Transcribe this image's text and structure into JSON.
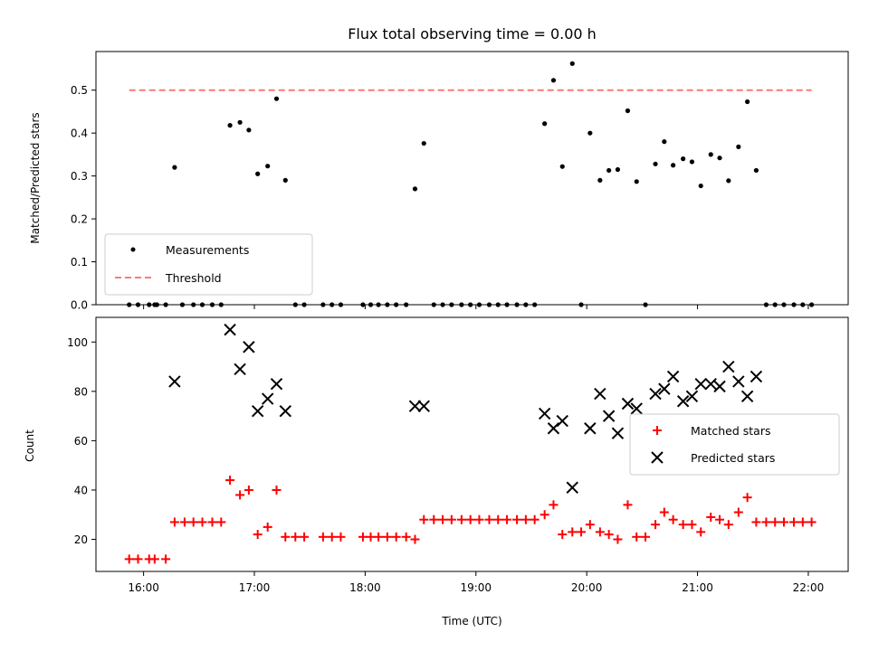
{
  "chart_data": [
    {
      "type": "scatter",
      "title": "Flux total observing time = 0.00 h",
      "xlabel": "",
      "ylabel": "Matched/Predicted stars",
      "xlim": [
        15.57,
        22.36
      ],
      "ylim": [
        0.0,
        0.59
      ],
      "yticks": [
        0.0,
        0.1,
        0.2,
        0.3,
        0.4,
        0.5
      ],
      "ytick_labels": [
        "0.0",
        "0.1",
        "0.2",
        "0.3",
        "0.4",
        "0.5"
      ],
      "grid": false,
      "legend": "lower-left",
      "series": [
        {
          "name": "Measurements",
          "marker": "dot",
          "color": "#000000",
          "points": [
            [
              15.87,
              0.0
            ],
            [
              15.95,
              0.0
            ],
            [
              16.05,
              0.0
            ],
            [
              16.1,
              0.0
            ],
            [
              16.12,
              0.0
            ],
            [
              16.2,
              0.0
            ],
            [
              16.28,
              0.32
            ],
            [
              16.35,
              0.0
            ],
            [
              16.45,
              0.0
            ],
            [
              16.53,
              0.0
            ],
            [
              16.62,
              0.0
            ],
            [
              16.7,
              0.0
            ],
            [
              16.78,
              0.418
            ],
            [
              16.87,
              0.425
            ],
            [
              16.95,
              0.407
            ],
            [
              17.03,
              0.305
            ],
            [
              17.12,
              0.323
            ],
            [
              17.2,
              0.48
            ],
            [
              17.28,
              0.29
            ],
            [
              17.37,
              0.0
            ],
            [
              17.45,
              0.0
            ],
            [
              17.62,
              0.0
            ],
            [
              17.7,
              0.0
            ],
            [
              17.78,
              0.0
            ],
            [
              17.98,
              0.0
            ],
            [
              18.05,
              0.0
            ],
            [
              18.12,
              0.0
            ],
            [
              18.2,
              0.0
            ],
            [
              18.28,
              0.0
            ],
            [
              18.37,
              0.0
            ],
            [
              18.45,
              0.27
            ],
            [
              18.53,
              0.376
            ],
            [
              18.62,
              0.0
            ],
            [
              18.7,
              0.0
            ],
            [
              18.78,
              0.0
            ],
            [
              18.87,
              0.0
            ],
            [
              18.95,
              0.0
            ],
            [
              19.03,
              0.0
            ],
            [
              19.12,
              0.0
            ],
            [
              19.2,
              0.0
            ],
            [
              19.28,
              0.0
            ],
            [
              19.37,
              0.0
            ],
            [
              19.45,
              0.0
            ],
            [
              19.53,
              0.0
            ],
            [
              19.62,
              0.422
            ],
            [
              19.7,
              0.523
            ],
            [
              19.78,
              0.322
            ],
            [
              19.87,
              0.562
            ],
            [
              19.95,
              0.0
            ],
            [
              20.03,
              0.4
            ],
            [
              20.12,
              0.29
            ],
            [
              20.2,
              0.313
            ],
            [
              20.28,
              0.315
            ],
            [
              20.37,
              0.452
            ],
            [
              20.45,
              0.287
            ],
            [
              20.53,
              0.0
            ],
            [
              20.62,
              0.328
            ],
            [
              20.7,
              0.38
            ],
            [
              20.78,
              0.325
            ],
            [
              20.87,
              0.34
            ],
            [
              20.95,
              0.333
            ],
            [
              21.03,
              0.277
            ],
            [
              21.12,
              0.35
            ],
            [
              21.2,
              0.342
            ],
            [
              21.28,
              0.289
            ],
            [
              21.37,
              0.368
            ],
            [
              21.45,
              0.473
            ],
            [
              21.53,
              0.313
            ],
            [
              21.62,
              0.0
            ],
            [
              21.7,
              0.0
            ],
            [
              21.78,
              0.0
            ],
            [
              21.87,
              0.0
            ],
            [
              21.95,
              0.0
            ],
            [
              22.03,
              0.0
            ]
          ]
        },
        {
          "name": "Threshold",
          "style": "dashed",
          "color": "#ff7777",
          "points": [
            [
              15.87,
              0.5
            ],
            [
              22.03,
              0.5
            ]
          ]
        }
      ]
    },
    {
      "type": "scatter",
      "title": "",
      "xlabel": "Time (UTC)",
      "ylabel": "Count",
      "xlim": [
        15.57,
        22.36
      ],
      "ylim": [
        7,
        110
      ],
      "yticks": [
        20,
        40,
        60,
        80,
        100
      ],
      "ytick_labels": [
        "20",
        "40",
        "60",
        "80",
        "100"
      ],
      "xticks": [
        16,
        17,
        18,
        19,
        20,
        21,
        22
      ],
      "xtick_labels": [
        "16:00",
        "17:00",
        "18:00",
        "19:00",
        "20:00",
        "21:00",
        "22:00"
      ],
      "grid": false,
      "legend": "right",
      "series": [
        {
          "name": "Matched stars",
          "marker": "plus",
          "color": "#ff0000",
          "points": [
            [
              15.87,
              12
            ],
            [
              15.95,
              12
            ],
            [
              16.05,
              12
            ],
            [
              16.1,
              12
            ],
            [
              16.2,
              12
            ],
            [
              16.28,
              27
            ],
            [
              16.37,
              27
            ],
            [
              16.45,
              27
            ],
            [
              16.53,
              27
            ],
            [
              16.62,
              27
            ],
            [
              16.7,
              27
            ],
            [
              16.78,
              44
            ],
            [
              16.87,
              38
            ],
            [
              16.95,
              40
            ],
            [
              17.03,
              22
            ],
            [
              17.12,
              25
            ],
            [
              17.2,
              40
            ],
            [
              17.28,
              21
            ],
            [
              17.37,
              21
            ],
            [
              17.45,
              21
            ],
            [
              17.62,
              21
            ],
            [
              17.7,
              21
            ],
            [
              17.78,
              21
            ],
            [
              17.98,
              21
            ],
            [
              18.05,
              21
            ],
            [
              18.12,
              21
            ],
            [
              18.2,
              21
            ],
            [
              18.28,
              21
            ],
            [
              18.37,
              21
            ],
            [
              18.45,
              20
            ],
            [
              18.53,
              28
            ],
            [
              18.62,
              28
            ],
            [
              18.7,
              28
            ],
            [
              18.78,
              28
            ],
            [
              18.87,
              28
            ],
            [
              18.95,
              28
            ],
            [
              19.03,
              28
            ],
            [
              19.12,
              28
            ],
            [
              19.2,
              28
            ],
            [
              19.28,
              28
            ],
            [
              19.37,
              28
            ],
            [
              19.45,
              28
            ],
            [
              19.53,
              28
            ],
            [
              19.62,
              30
            ],
            [
              19.7,
              34
            ],
            [
              19.78,
              22
            ],
            [
              19.87,
              23
            ],
            [
              19.95,
              23
            ],
            [
              20.03,
              26
            ],
            [
              20.12,
              23
            ],
            [
              20.2,
              22
            ],
            [
              20.28,
              20
            ],
            [
              20.37,
              34
            ],
            [
              20.45,
              21
            ],
            [
              20.53,
              21
            ],
            [
              20.62,
              26
            ],
            [
              20.7,
              31
            ],
            [
              20.78,
              28
            ],
            [
              20.87,
              26
            ],
            [
              20.95,
              26
            ],
            [
              21.03,
              23
            ],
            [
              21.12,
              29
            ],
            [
              21.2,
              28
            ],
            [
              21.28,
              26
            ],
            [
              21.37,
              31
            ],
            [
              21.45,
              37
            ],
            [
              21.53,
              27
            ],
            [
              21.62,
              27
            ],
            [
              21.7,
              27
            ],
            [
              21.78,
              27
            ],
            [
              21.87,
              27
            ],
            [
              21.95,
              27
            ],
            [
              22.03,
              27
            ]
          ]
        },
        {
          "name": "Predicted stars",
          "marker": "x",
          "color": "#000000",
          "points": [
            [
              16.28,
              84
            ],
            [
              16.78,
              105
            ],
            [
              16.87,
              89
            ],
            [
              16.95,
              98
            ],
            [
              17.03,
              72
            ],
            [
              17.12,
              77
            ],
            [
              17.2,
              83
            ],
            [
              17.28,
              72
            ],
            [
              18.45,
              74
            ],
            [
              18.53,
              74
            ],
            [
              19.62,
              71
            ],
            [
              19.7,
              65
            ],
            [
              19.78,
              68
            ],
            [
              19.87,
              41
            ],
            [
              20.03,
              65
            ],
            [
              20.12,
              79
            ],
            [
              20.2,
              70
            ],
            [
              20.28,
              63
            ],
            [
              20.37,
              75
            ],
            [
              20.45,
              73
            ],
            [
              20.62,
              79
            ],
            [
              20.7,
              81
            ],
            [
              20.78,
              86
            ],
            [
              20.87,
              76
            ],
            [
              20.95,
              78
            ],
            [
              21.03,
              83
            ],
            [
              21.12,
              83
            ],
            [
              21.2,
              82
            ],
            [
              21.28,
              90
            ],
            [
              21.37,
              84
            ],
            [
              21.45,
              78
            ],
            [
              21.53,
              86
            ]
          ]
        }
      ]
    }
  ]
}
